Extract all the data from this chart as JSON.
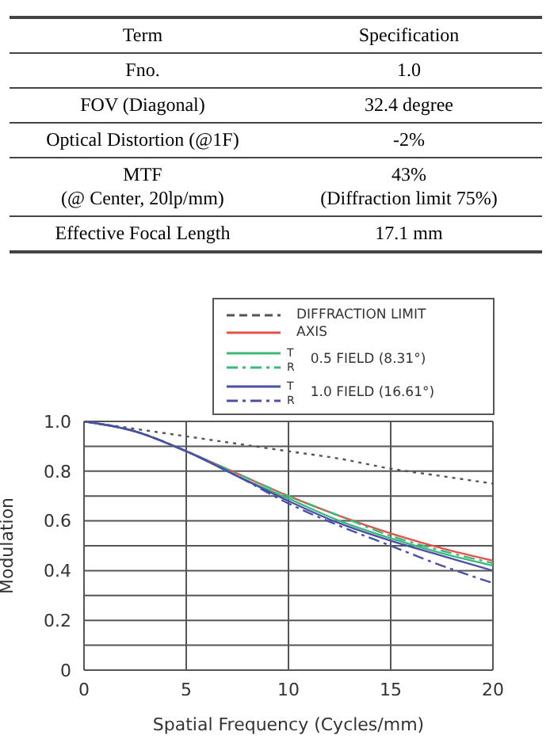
{
  "chart_data": [
    {
      "type": "other",
      "annotations": [
        "Term",
        "Specification",
        "Fno.",
        "1.0",
        "FOV (Diagonal)",
        "32.4 degree",
        "Optical Distortion (@1F)",
        "-2%",
        "MTF\n(@ Center, 20lp/mm)",
        "43%\n(Diffraction limit 75%)",
        "Effective Focal Length",
        "17.1 mm"
      ]
    },
    {
      "type": "line",
      "xlabel": "Spatial Frequency (Cycles/mm)",
      "ylabel": "Modulation",
      "x": [
        0,
        2.5,
        5,
        7.5,
        10,
        12.5,
        15,
        17.5,
        20
      ],
      "xlim": [
        0,
        20
      ],
      "xticks": [
        0,
        5,
        10,
        15,
        20
      ],
      "ylim": [
        0,
        1
      ],
      "yticks": [
        {
          "value": 0,
          "label": "0"
        },
        {
          "value": 0.1,
          "label": null
        },
        0.2,
        {
          "value": 0.3,
          "label": null
        },
        0.4,
        {
          "value": 0.5,
          "label": null
        },
        0.6,
        {
          "value": 0.7,
          "label": null
        },
        0.8,
        {
          "value": 0.9,
          "label": null
        },
        {
          "value": 1,
          "label": "1.0"
        }
      ],
      "grid": true,
      "legend": "top right",
      "marker": "none",
      "annotations": [
        "0.5 FIELD (8.31°)",
        "1.0 FIELD (16.61°)"
      ],
      "series": [
        {
          "name": "DIFFRACTION LIMIT",
          "color": "#555555",
          "line_style": "dotted",
          "values": [
            1,
            0.97,
            0.94,
            0.91,
            0.88,
            0.85,
            0.81,
            0.78,
            0.75
          ]
        },
        {
          "name": "AXIS",
          "color": "#e8504a",
          "line_style": "solid",
          "values": [
            1,
            0.96,
            0.88,
            0.79,
            0.7,
            0.62,
            0.55,
            0.49,
            0.44
          ]
        },
        {
          "name": "T",
          "color": "#3cb878",
          "line_style": "solid",
          "values": [
            1,
            0.96,
            0.88,
            0.78,
            0.69,
            0.6,
            0.53,
            0.47,
            0.42
          ]
        },
        {
          "name": "R",
          "color": "#3cb878",
          "line_style": "dashed",
          "values": [
            1,
            0.96,
            0.88,
            0.79,
            0.7,
            0.62,
            0.54,
            0.48,
            0.43
          ]
        },
        {
          "name": "T",
          "color": "#4a4fa8",
          "line_style": "solid",
          "values": [
            1,
            0.96,
            0.88,
            0.78,
            0.68,
            0.59,
            0.52,
            0.46,
            0.4
          ]
        },
        {
          "name": "R",
          "color": "#4a4fa8",
          "line_style": "dashed",
          "values": [
            1,
            0.96,
            0.88,
            0.78,
            0.67,
            0.58,
            0.5,
            0.42,
            0.35
          ]
        }
      ]
    }
  ]
}
